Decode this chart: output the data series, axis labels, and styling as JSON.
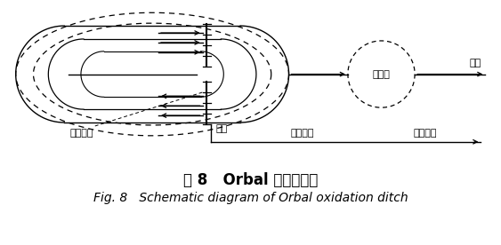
{
  "bg_color": "#ffffff",
  "title_cn": "图 8   Orbal 氧化沟流程",
  "title_en": "Fig. 8   Schematic diagram of Orbal oxidation ditch",
  "title_cn_fontsize": 12,
  "title_en_fontsize": 10,
  "label_ershen": "二沉池",
  "label_chushui": "出水",
  "label_baoqi": "曝气转刷",
  "label_jinshui": "进水",
  "label_huiliun": "回流污泥",
  "label_shengyu": "剩余污泥"
}
